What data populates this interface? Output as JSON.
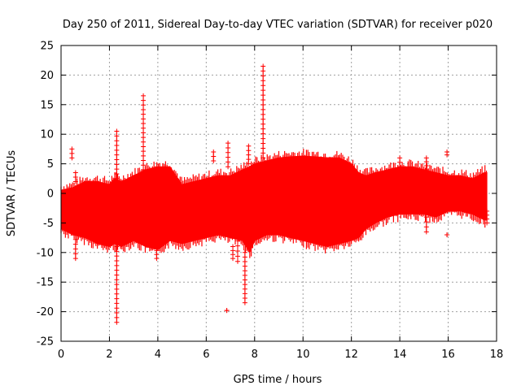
{
  "chart_data": {
    "type": "scatter",
    "title": "Day 250 of 2011, Sidereal Day-to-day VTEC variation (SDTVAR) for receiver p020",
    "xlabel": "GPS time / hours",
    "ylabel": "SDTVAR / TECUs",
    "xlim": [
      0,
      18
    ],
    "ylim": [
      -25,
      25
    ],
    "x_ticks": [
      "0",
      "2",
      "4",
      "6",
      "8",
      "10",
      "12",
      "14",
      "16",
      "18"
    ],
    "y_ticks": [
      "-25",
      "-20",
      "-15",
      "-10",
      "-5",
      "0",
      "5",
      "10",
      "15",
      "20",
      "25"
    ],
    "grid": true,
    "marker": "+",
    "color": "#ff0000",
    "envelope": {
      "description": "dense data band: upper and lower bounds of SDTVAR vs GPS time",
      "x": [
        0.0,
        0.5,
        1.0,
        1.5,
        2.0,
        2.2,
        2.5,
        3.0,
        3.5,
        4.0,
        4.5,
        5.0,
        5.5,
        6.0,
        6.5,
        7.0,
        7.5,
        7.8,
        8.0,
        8.5,
        9.0,
        9.5,
        10.0,
        10.5,
        11.0,
        11.5,
        12.0,
        12.3,
        12.6,
        13.0,
        13.5,
        14.0,
        14.5,
        15.0,
        15.5,
        16.0,
        16.5,
        17.0,
        17.5,
        17.6
      ],
      "upper": [
        0.5,
        1.0,
        2.0,
        2.0,
        1.5,
        2.5,
        2.0,
        3.0,
        4.0,
        4.5,
        4.5,
        1.5,
        2.0,
        2.5,
        3.0,
        3.0,
        4.0,
        4.5,
        5.0,
        5.5,
        6.0,
        6.2,
        6.3,
        6.2,
        6.0,
        6.0,
        5.0,
        3.5,
        3.0,
        3.5,
        4.0,
        4.5,
        4.5,
        4.0,
        3.5,
        3.0,
        3.0,
        2.5,
        3.5,
        3.5
      ],
      "lower": [
        -6.0,
        -7.0,
        -7.5,
        -8.5,
        -9.0,
        -8.5,
        -9.0,
        -8.0,
        -9.0,
        -9.5,
        -8.0,
        -8.5,
        -8.0,
        -7.5,
        -7.0,
        -7.5,
        -8.0,
        -10.0,
        -8.0,
        -7.0,
        -7.0,
        -7.5,
        -8.0,
        -8.5,
        -9.0,
        -8.5,
        -8.0,
        -7.5,
        -6.0,
        -5.0,
        -4.0,
        -3.5,
        -3.5,
        -3.5,
        -4.0,
        -3.0,
        -3.0,
        -3.5,
        -4.5,
        -4.5
      ]
    },
    "spikes": [
      {
        "x": 0.45,
        "y_from": 6.0,
        "y_to": 7.5
      },
      {
        "x": 0.6,
        "y_from": -7.0,
        "y_to": -11.0
      },
      {
        "x": 0.6,
        "y_from": 2.0,
        "y_to": 3.5
      },
      {
        "x": 2.3,
        "y_from": 2.5,
        "y_to": 10.5
      },
      {
        "x": 2.3,
        "y_from": -9.0,
        "y_to": -21.8
      },
      {
        "x": 3.4,
        "y_from": 4.0,
        "y_to": 16.5
      },
      {
        "x": 3.95,
        "y_from": -9.0,
        "y_to": -11.0
      },
      {
        "x": 6.3,
        "y_from": 5.5,
        "y_to": 7.0
      },
      {
        "x": 6.85,
        "y_from": -19.8,
        "y_to": -19.8
      },
      {
        "x": 6.9,
        "y_from": 4.5,
        "y_to": 8.5
      },
      {
        "x": 7.1,
        "y_from": -9.0,
        "y_to": -11.0
      },
      {
        "x": 7.3,
        "y_from": -8.0,
        "y_to": -11.5
      },
      {
        "x": 7.6,
        "y_from": -10.0,
        "y_to": -18.5
      },
      {
        "x": 7.75,
        "y_from": 5.0,
        "y_to": 8.0
      },
      {
        "x": 8.35,
        "y_from": 6.0,
        "y_to": 21.5
      },
      {
        "x": 14.0,
        "y_from": 4.5,
        "y_to": 6.0
      },
      {
        "x": 15.1,
        "y_from": -4.0,
        "y_to": -6.5
      },
      {
        "x": 15.1,
        "y_from": 4.0,
        "y_to": 6.0
      },
      {
        "x": 15.95,
        "y_from": 6.5,
        "y_to": 7.0
      },
      {
        "x": 15.95,
        "y_from": -7.0,
        "y_to": -7.0
      },
      {
        "x": 17.6,
        "y_from": -3.0,
        "y_to": -5.0
      }
    ]
  }
}
